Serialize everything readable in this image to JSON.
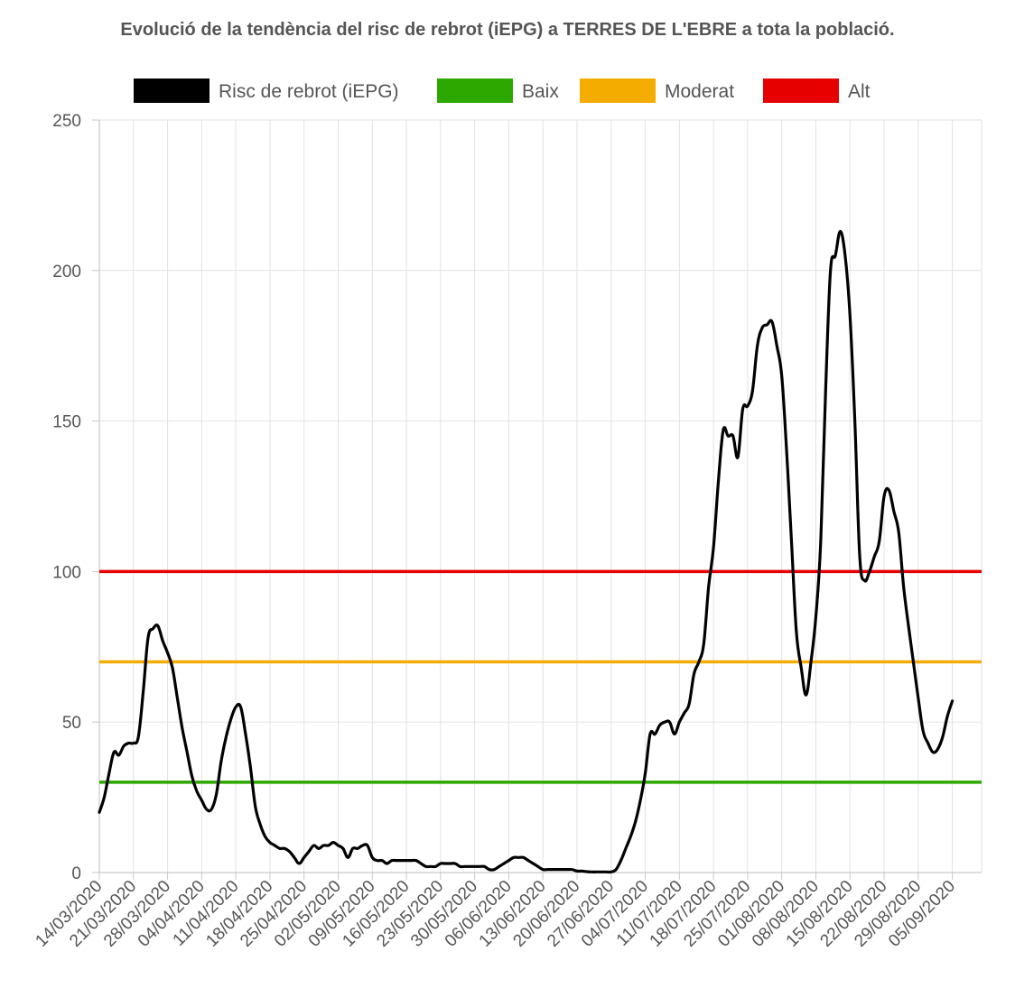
{
  "chart_data": {
    "type": "line",
    "title": "Evolució de la tendència del risc de rebrot (iEPG) a TERRES DE L'EBRE a tota la població.",
    "xlabel": "",
    "ylabel": "",
    "ylim": [
      0,
      250
    ],
    "yticks": [
      "0",
      "50",
      "100",
      "150",
      "200",
      "250"
    ],
    "grid": true,
    "legend_position": "top-center",
    "x_start": "14/03/2020",
    "x_end": "11/09/2020",
    "x_tick_labels": [
      "14/03/2020",
      "21/03/2020",
      "28/03/2020",
      "04/04/2020",
      "11/04/2020",
      "18/04/2020",
      "25/04/2020",
      "02/05/2020",
      "09/05/2020",
      "16/05/2020",
      "23/05/2020",
      "30/05/2020",
      "06/06/2020",
      "13/06/2020",
      "20/06/2020",
      "27/06/2020",
      "04/07/2020",
      "11/07/2020",
      "18/07/2020",
      "25/07/2020",
      "01/08/2020",
      "08/08/2020",
      "15/08/2020",
      "22/08/2020",
      "29/08/2020",
      "05/09/2020"
    ],
    "series": [
      {
        "name": "Risc de rebrot (iEPG)",
        "color": "#000000",
        "points": [
          [
            "14/03/2020",
            20
          ],
          [
            "15/03/2020",
            25
          ],
          [
            "16/03/2020",
            33
          ],
          [
            "17/03/2020",
            40
          ],
          [
            "18/03/2020",
            39
          ],
          [
            "19/03/2020",
            42
          ],
          [
            "20/03/2020",
            43
          ],
          [
            "21/03/2020",
            43
          ],
          [
            "22/03/2020",
            45
          ],
          [
            "23/03/2020",
            60
          ],
          [
            "24/03/2020",
            78
          ],
          [
            "25/03/2020",
            81
          ],
          [
            "26/03/2020",
            82
          ],
          [
            "27/03/2020",
            77
          ],
          [
            "28/03/2020",
            73
          ],
          [
            "29/03/2020",
            68
          ],
          [
            "30/03/2020",
            58
          ],
          [
            "31/03/2020",
            48
          ],
          [
            "01/04/2020",
            40
          ],
          [
            "02/04/2020",
            32
          ],
          [
            "03/04/2020",
            27
          ],
          [
            "04/04/2020",
            24
          ],
          [
            "05/04/2020",
            21
          ],
          [
            "06/04/2020",
            21
          ],
          [
            "07/04/2020",
            26
          ],
          [
            "08/04/2020",
            37
          ],
          [
            "09/04/2020",
            45
          ],
          [
            "10/04/2020",
            51
          ],
          [
            "11/04/2020",
            55
          ],
          [
            "12/04/2020",
            55
          ],
          [
            "13/04/2020",
            46
          ],
          [
            "14/04/2020",
            35
          ],
          [
            "15/04/2020",
            22
          ],
          [
            "16/04/2020",
            16
          ],
          [
            "17/04/2020",
            12
          ],
          [
            "18/04/2020",
            10
          ],
          [
            "19/04/2020",
            9
          ],
          [
            "20/04/2020",
            8
          ],
          [
            "21/04/2020",
            8
          ],
          [
            "22/04/2020",
            7
          ],
          [
            "23/04/2020",
            5
          ],
          [
            "24/04/2020",
            3
          ],
          [
            "25/04/2020",
            5
          ],
          [
            "26/04/2020",
            7
          ],
          [
            "27/04/2020",
            9
          ],
          [
            "28/04/2020",
            8
          ],
          [
            "29/04/2020",
            9
          ],
          [
            "30/04/2020",
            9
          ],
          [
            "01/05/2020",
            10
          ],
          [
            "02/05/2020",
            9
          ],
          [
            "03/05/2020",
            8
          ],
          [
            "04/05/2020",
            5
          ],
          [
            "05/05/2020",
            8
          ],
          [
            "06/05/2020",
            8
          ],
          [
            "07/05/2020",
            9
          ],
          [
            "08/05/2020",
            9
          ],
          [
            "09/05/2020",
            5
          ],
          [
            "10/05/2020",
            4
          ],
          [
            "11/05/2020",
            4
          ],
          [
            "12/05/2020",
            3
          ],
          [
            "13/05/2020",
            4
          ],
          [
            "14/05/2020",
            4
          ],
          [
            "15/05/2020",
            4
          ],
          [
            "16/05/2020",
            4
          ],
          [
            "17/05/2020",
            4
          ],
          [
            "18/05/2020",
            4
          ],
          [
            "19/05/2020",
            3
          ],
          [
            "20/05/2020",
            2
          ],
          [
            "21/05/2020",
            2
          ],
          [
            "22/05/2020",
            2
          ],
          [
            "23/05/2020",
            3
          ],
          [
            "24/05/2020",
            3
          ],
          [
            "25/05/2020",
            3
          ],
          [
            "26/05/2020",
            3
          ],
          [
            "27/05/2020",
            2
          ],
          [
            "28/05/2020",
            2
          ],
          [
            "29/05/2020",
            2
          ],
          [
            "30/05/2020",
            2
          ],
          [
            "31/05/2020",
            2
          ],
          [
            "01/06/2020",
            2
          ],
          [
            "02/06/2020",
            1
          ],
          [
            "03/06/2020",
            1
          ],
          [
            "04/06/2020",
            2
          ],
          [
            "05/06/2020",
            3
          ],
          [
            "06/06/2020",
            4
          ],
          [
            "07/06/2020",
            5
          ],
          [
            "08/06/2020",
            5
          ],
          [
            "09/06/2020",
            5
          ],
          [
            "10/06/2020",
            4
          ],
          [
            "11/06/2020",
            3
          ],
          [
            "12/06/2020",
            2
          ],
          [
            "13/06/2020",
            1
          ],
          [
            "14/06/2020",
            1
          ],
          [
            "15/06/2020",
            1
          ],
          [
            "16/06/2020",
            1
          ],
          [
            "17/06/2020",
            1
          ],
          [
            "18/06/2020",
            1
          ],
          [
            "19/06/2020",
            1
          ],
          [
            "20/06/2020",
            0.5
          ],
          [
            "21/06/2020",
            0.5
          ],
          [
            "22/06/2020",
            0.3
          ],
          [
            "23/06/2020",
            0.2
          ],
          [
            "24/06/2020",
            0.2
          ],
          [
            "25/06/2020",
            0.2
          ],
          [
            "26/06/2020",
            0.2
          ],
          [
            "27/06/2020",
            0.2
          ],
          [
            "28/06/2020",
            1
          ],
          [
            "29/06/2020",
            4
          ],
          [
            "30/06/2020",
            8
          ],
          [
            "01/07/2020",
            12
          ],
          [
            "02/07/2020",
            17
          ],
          [
            "03/07/2020",
            24
          ],
          [
            "04/07/2020",
            33
          ],
          [
            "05/07/2020",
            46
          ],
          [
            "06/07/2020",
            46
          ],
          [
            "07/07/2020",
            49
          ],
          [
            "08/07/2020",
            50
          ],
          [
            "09/07/2020",
            50
          ],
          [
            "10/07/2020",
            46
          ],
          [
            "11/07/2020",
            50
          ],
          [
            "12/07/2020",
            53
          ],
          [
            "13/07/2020",
            56
          ],
          [
            "14/07/2020",
            66
          ],
          [
            "15/07/2020",
            70
          ],
          [
            "16/07/2020",
            76
          ],
          [
            "17/07/2020",
            95
          ],
          [
            "18/07/2020",
            108
          ],
          [
            "19/07/2020",
            130
          ],
          [
            "20/07/2020",
            147
          ],
          [
            "21/07/2020",
            145
          ],
          [
            "22/07/2020",
            145
          ],
          [
            "23/07/2020",
            138
          ],
          [
            "24/07/2020",
            154
          ],
          [
            "25/07/2020",
            155
          ],
          [
            "26/07/2020",
            160
          ],
          [
            "27/07/2020",
            175
          ],
          [
            "28/07/2020",
            181
          ],
          [
            "29/07/2020",
            182
          ],
          [
            "30/07/2020",
            183
          ],
          [
            "31/07/2020",
            175
          ],
          [
            "01/08/2020",
            165
          ],
          [
            "02/08/2020",
            140
          ],
          [
            "03/08/2020",
            110
          ],
          [
            "04/08/2020",
            80
          ],
          [
            "05/08/2020",
            68
          ],
          [
            "06/08/2020",
            59
          ],
          [
            "07/08/2020",
            70
          ],
          [
            "08/08/2020",
            85
          ],
          [
            "09/08/2020",
            110
          ],
          [
            "10/08/2020",
            160
          ],
          [
            "11/08/2020",
            200
          ],
          [
            "12/08/2020",
            205
          ],
          [
            "13/08/2020",
            213
          ],
          [
            "14/08/2020",
            205
          ],
          [
            "15/08/2020",
            185
          ],
          [
            "16/08/2020",
            150
          ],
          [
            "17/08/2020",
            105
          ],
          [
            "18/08/2020",
            97
          ],
          [
            "19/08/2020",
            100
          ],
          [
            "20/08/2020",
            105
          ],
          [
            "21/08/2020",
            110
          ],
          [
            "22/08/2020",
            125
          ],
          [
            "23/08/2020",
            127
          ],
          [
            "24/08/2020",
            120
          ],
          [
            "25/08/2020",
            113
          ],
          [
            "26/08/2020",
            95
          ],
          [
            "27/08/2020",
            82
          ],
          [
            "28/08/2020",
            70
          ],
          [
            "29/08/2020",
            58
          ],
          [
            "30/08/2020",
            47
          ],
          [
            "31/08/2020",
            43
          ],
          [
            "01/09/2020",
            40
          ],
          [
            "02/09/2020",
            41
          ],
          [
            "03/09/2020",
            45
          ],
          [
            "04/09/2020",
            52
          ],
          [
            "05/09/2020",
            57
          ]
        ]
      },
      {
        "name": "Baix",
        "color": "#2ca800",
        "constant": 30
      },
      {
        "name": "Moderat",
        "color": "#f5ac00",
        "constant": 70
      },
      {
        "name": "Alt",
        "color": "#e60000",
        "constant": 100
      }
    ]
  }
}
